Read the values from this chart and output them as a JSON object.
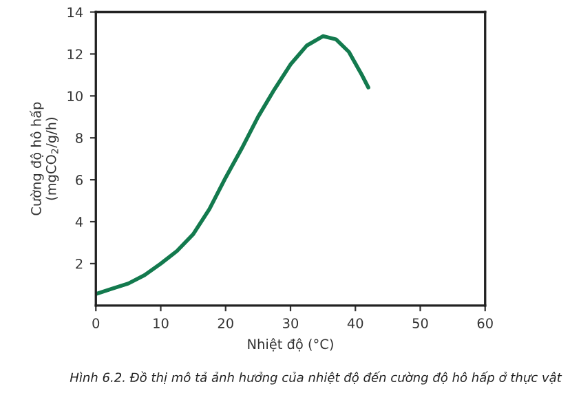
{
  "chart_data": {
    "type": "line",
    "xlabel": "Nhiệt độ (°C)",
    "ylabel": "Cường độ hô hấp\n(mgCO$_{2}$/g/h)",
    "annotations": [
      "Hình 6.2. Đồ thị mô tả ảnh hưởng của nhiệt độ đến cường độ hô hấp ở thực vật"
    ],
    "series": [
      {
        "color": "#137a4e",
        "x": [
          0,
          2.5,
          5,
          7.5,
          10,
          12.5,
          15,
          17.5,
          20,
          22.5,
          25,
          27.5,
          30,
          32.5,
          35,
          37,
          39,
          41,
          42
        ],
        "values": [
          0.55,
          0.8,
          1.05,
          1.45,
          2.0,
          2.6,
          3.4,
          4.6,
          6.1,
          7.5,
          9.0,
          10.3,
          11.5,
          12.4,
          12.85,
          12.7,
          12.1,
          11.0,
          10.4
        ]
      }
    ],
    "xlim": [
      0,
      60
    ],
    "xticks": [
      0,
      10,
      20,
      30,
      40,
      50,
      60
    ],
    "ylim": [
      0,
      14
    ],
    "yticks": [
      2,
      4,
      6,
      8,
      10,
      12,
      14
    ],
    "grid": false,
    "legend": false,
    "marker": "none",
    "line_style": "solid"
  }
}
